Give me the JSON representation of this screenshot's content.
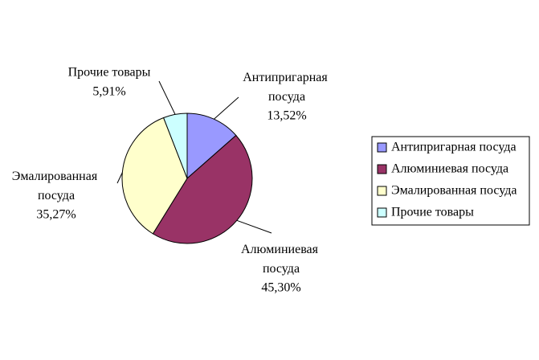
{
  "chart_data": {
    "type": "pie",
    "categories": [
      "Антипригарная посуда",
      "Алюминиевая посуда",
      "Эмалированная посуда",
      "Прочие товары"
    ],
    "values": [
      13.52,
      45.3,
      35.27,
      5.91
    ],
    "value_labels": [
      "13,52%",
      "45,30%",
      "35,27%",
      "5,91%"
    ],
    "colors": [
      "#9999ff",
      "#993366",
      "#ffffcc",
      "#ccffff"
    ],
    "legend": "right"
  }
}
